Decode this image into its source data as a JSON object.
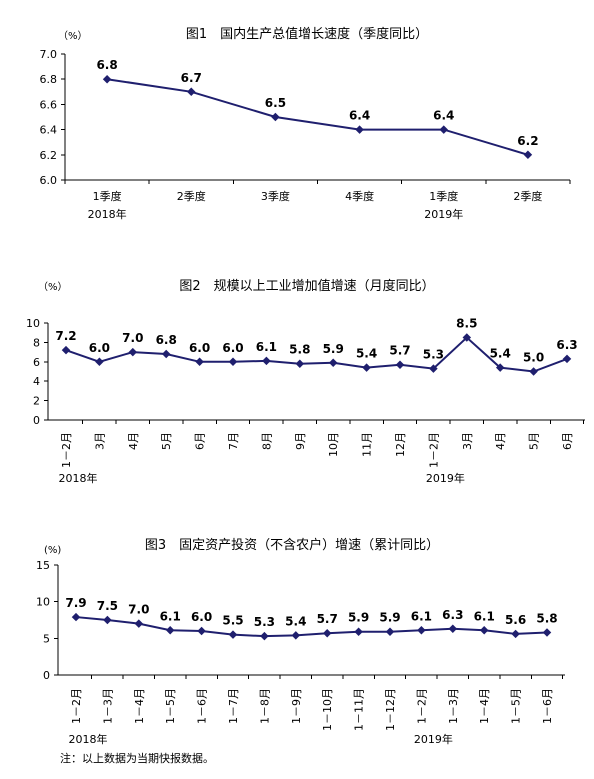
{
  "colors": {
    "series": "#1f1f6e",
    "axis": "#000000"
  },
  "chart_data": [
    {
      "type": "line",
      "title": "图1　国内生产总值增长速度（季度同比）",
      "unit": "（%）",
      "categories": [
        "1季度",
        "2季度",
        "3季度",
        "4季度",
        "1季度",
        "2季度"
      ],
      "year_labels": [
        {
          "index": 0,
          "text": "2018年"
        },
        {
          "index": 4,
          "text": "2019年"
        }
      ],
      "ylim": [
        6.0,
        7.0
      ],
      "yticks": [
        "6.0",
        "6.2",
        "6.4",
        "6.6",
        "6.8",
        "7.0"
      ],
      "values": [
        6.8,
        6.7,
        6.5,
        6.4,
        6.4,
        6.2
      ],
      "labels": [
        "6.8",
        "6.7",
        "6.5",
        "6.4",
        "6.4",
        "6.2"
      ],
      "xlabel": "",
      "ylabel": "",
      "grid": false
    },
    {
      "type": "line",
      "title": "图2　规模以上工业增加值增速（月度同比）",
      "unit": "（%）",
      "categories": [
        "1－2月",
        "3月",
        "4月",
        "5月",
        "6月",
        "7月",
        "8月",
        "9月",
        "10月",
        "11月",
        "12月",
        "1－2月",
        "3月",
        "4月",
        "5月",
        "6月"
      ],
      "year_labels": [
        {
          "index": 0,
          "text": "2018年"
        },
        {
          "index": 11,
          "text": "2019年"
        }
      ],
      "ylim": [
        0,
        10
      ],
      "yticks": [
        "0",
        "2",
        "4",
        "6",
        "8",
        "10"
      ],
      "values": [
        7.2,
        6.0,
        7.0,
        6.8,
        6.0,
        6.0,
        6.1,
        5.8,
        5.9,
        5.4,
        5.7,
        5.3,
        8.5,
        5.4,
        5.0,
        6.3
      ],
      "labels": [
        "7.2",
        "6.0",
        "7.0",
        "6.8",
        "6.0",
        "6.0",
        "6.1",
        "5.8",
        "5.9",
        "5.4",
        "5.7",
        "5.3",
        "8.5",
        "5.4",
        "5.0",
        "6.3"
      ],
      "xlabel": "",
      "ylabel": "",
      "grid": false
    },
    {
      "type": "line",
      "title": "图3　固定资产投资（不含农户）增速（累计同比）",
      "unit": "(%)",
      "categories": [
        "1－2月",
        "1－3月",
        "1－4月",
        "1－5月",
        "1－6月",
        "1－7月",
        "1－8月",
        "1－9月",
        "1－10月",
        "1－11月",
        "1－12月",
        "1－2月",
        "1－3月",
        "1－4月",
        "1－5月",
        "1－6月"
      ],
      "year_labels": [
        {
          "index": 0,
          "text": "2018年"
        },
        {
          "index": 11,
          "text": "2019年"
        }
      ],
      "ylim": [
        0,
        15
      ],
      "yticks": [
        "0",
        "5",
        "10",
        "15"
      ],
      "values": [
        7.9,
        7.5,
        7.0,
        6.1,
        6.0,
        5.5,
        5.3,
        5.4,
        5.7,
        5.9,
        5.9,
        6.1,
        6.3,
        6.1,
        5.6,
        5.8
      ],
      "labels": [
        "7.9",
        "7.5",
        "7.0",
        "6.1",
        "6.0",
        "5.5",
        "5.3",
        "5.4",
        "5.7",
        "5.9",
        "5.9",
        "6.1",
        "6.3",
        "6.1",
        "5.6",
        "5.8"
      ],
      "xlabel": "",
      "ylabel": "",
      "grid": false
    }
  ],
  "note": "注：以上数据为当期快报数据。"
}
